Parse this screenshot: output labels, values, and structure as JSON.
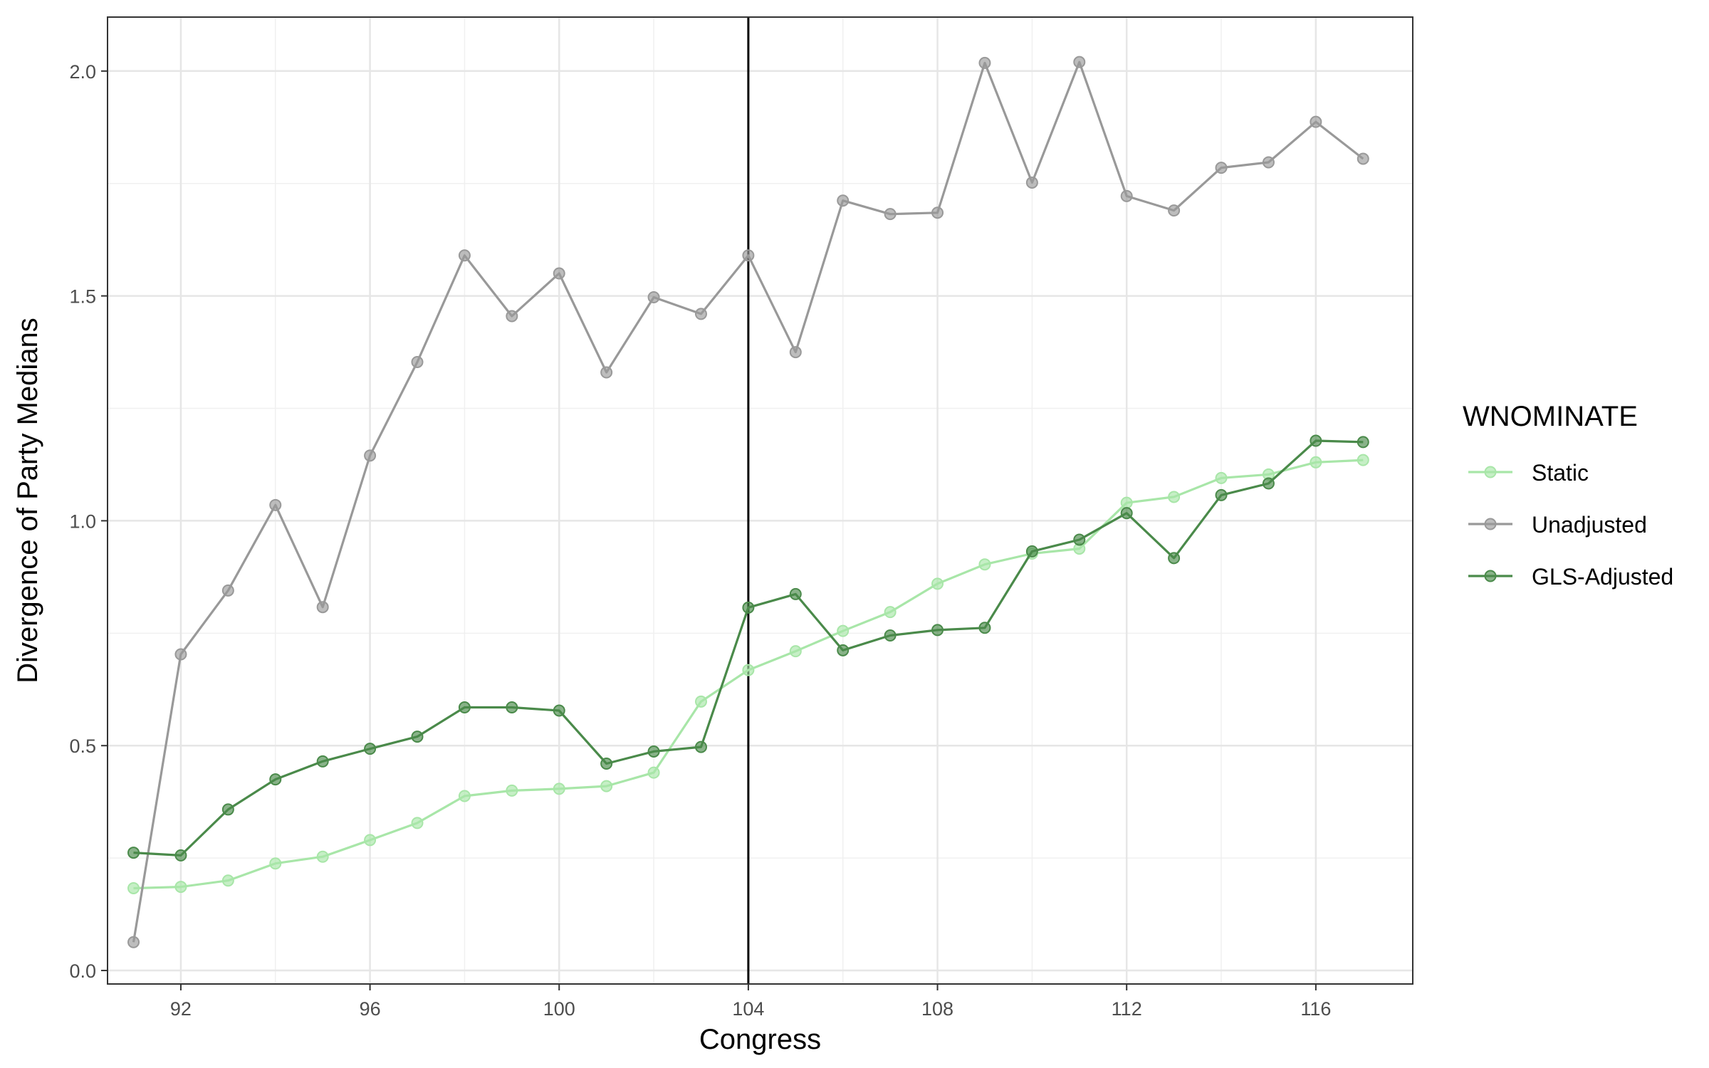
{
  "chart_data": {
    "type": "line",
    "xlabel": "Congress",
    "ylabel": "Divergence of Party Medians",
    "xlim": [
      90.45,
      118.05
    ],
    "ylim": [
      -0.03,
      2.12
    ],
    "xticks": [
      92,
      96,
      100,
      104,
      108,
      112,
      116
    ],
    "xtick_labels": [
      "92",
      "96",
      "100",
      "104",
      "108",
      "112",
      "116"
    ],
    "yticks": [
      0,
      0.5,
      1,
      1.5,
      2
    ],
    "ytick_labels": [
      "0.0",
      "0.5",
      "1.0",
      "1.5",
      "2.0"
    ],
    "grid": true,
    "vline": 104,
    "legend": {
      "title": "WNOMINATE",
      "position": "right"
    },
    "x": [
      91,
      92,
      93,
      94,
      95,
      96,
      97,
      98,
      99,
      100,
      101,
      102,
      103,
      104,
      105,
      106,
      107,
      108,
      109,
      110,
      111,
      112,
      113,
      114,
      115,
      116,
      117
    ],
    "series": [
      {
        "name": "Static",
        "color": "#a8e6a8",
        "values": [
          0.183,
          0.186,
          0.2,
          0.238,
          0.253,
          0.29,
          0.328,
          0.388,
          0.4,
          0.404,
          0.41,
          0.44,
          0.598,
          0.668,
          0.71,
          0.755,
          0.797,
          0.86,
          0.903,
          0.927,
          0.938,
          1.04,
          1.053,
          1.095,
          1.103,
          1.13,
          1.135
        ]
      },
      {
        "name": "Unadjusted",
        "color": "#999999",
        "values": [
          0.063,
          0.703,
          0.845,
          1.035,
          0.808,
          1.145,
          1.353,
          1.59,
          1.455,
          1.55,
          1.33,
          1.497,
          1.46,
          1.59,
          1.375,
          1.712,
          1.682,
          1.685,
          2.018,
          1.752,
          2.02,
          1.722,
          1.69,
          1.785,
          1.797,
          1.887,
          1.805
        ]
      },
      {
        "name": "GLS-Adjusted",
        "color": "#4a8a4a",
        "values": [
          0.262,
          0.256,
          0.358,
          0.425,
          0.465,
          0.493,
          0.52,
          0.585,
          0.585,
          0.578,
          0.46,
          0.487,
          0.497,
          0.807,
          0.837,
          0.712,
          0.745,
          0.757,
          0.762,
          0.932,
          0.958,
          1.017,
          0.917,
          1.057,
          1.083,
          1.178,
          1.175
        ]
      }
    ]
  }
}
